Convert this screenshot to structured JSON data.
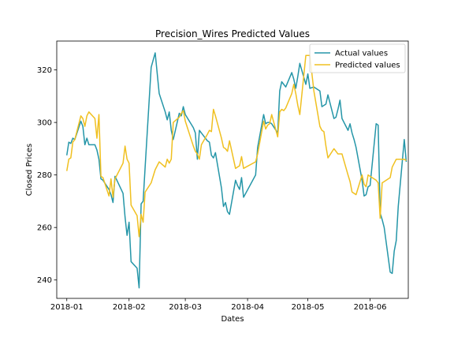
{
  "chart_data": {
    "type": "line",
    "title": "Precision_Wires Predicted Values",
    "xlabel": "Dates",
    "ylabel": "Closed Prices",
    "x_ticks": [
      "2018-01",
      "2018-02",
      "2018-03",
      "2018-04",
      "2018-05",
      "2018-06"
    ],
    "y_ticks": [
      240,
      260,
      280,
      300,
      320
    ],
    "ylim": [
      233,
      331
    ],
    "xlim": [
      "2017-12-27",
      "2018-06-20"
    ],
    "legend_position": "top-right",
    "grid": false,
    "series": [
      {
        "name": "Actual values",
        "color": "#2596a8",
        "points": [
          [
            "2018-01-01",
            287.5
          ],
          [
            "2018-01-02",
            292.5
          ],
          [
            "2018-01-03",
            292.0
          ],
          [
            "2018-01-04",
            294.0
          ],
          [
            "2018-01-05",
            293.5
          ],
          [
            "2018-01-08",
            300.5
          ],
          [
            "2018-01-09",
            298.5
          ],
          [
            "2018-01-10",
            291.5
          ],
          [
            "2018-01-11",
            294.0
          ],
          [
            "2018-01-12",
            291.5
          ],
          [
            "2018-01-15",
            291.5
          ],
          [
            "2018-01-16",
            289.5
          ],
          [
            "2018-01-17",
            286.0
          ],
          [
            "2018-01-18",
            278.5
          ],
          [
            "2018-01-19",
            278.0
          ],
          [
            "2018-01-22",
            274.5
          ],
          [
            "2018-01-23",
            272.5
          ],
          [
            "2018-01-24",
            269.5
          ],
          [
            "2018-01-25",
            279.5
          ],
          [
            "2018-01-29",
            273.0
          ],
          [
            "2018-01-30",
            264.0
          ],
          [
            "2018-01-31",
            257.0
          ],
          [
            "2018-02-01",
            262.0
          ],
          [
            "2018-02-02",
            247.0
          ],
          [
            "2018-02-05",
            244.5
          ],
          [
            "2018-02-06",
            237.0
          ],
          [
            "2018-02-07",
            269.0
          ],
          [
            "2018-02-08",
            270.0
          ],
          [
            "2018-02-09",
            283.0
          ],
          [
            "2018-02-12",
            321.0
          ],
          [
            "2018-02-14",
            326.5
          ],
          [
            "2018-02-16",
            311.0
          ],
          [
            "2018-02-19",
            304.0
          ],
          [
            "2018-02-20",
            301.0
          ],
          [
            "2018-02-21",
            304.0
          ],
          [
            "2018-02-22",
            297.0
          ],
          [
            "2018-02-23",
            293.5
          ],
          [
            "2018-02-26",
            303.5
          ],
          [
            "2018-02-27",
            302.5
          ],
          [
            "2018-02-28",
            306.0
          ],
          [
            "2018-03-01",
            303.0
          ],
          [
            "2018-03-05",
            298.0
          ],
          [
            "2018-03-06",
            296.0
          ],
          [
            "2018-03-07",
            286.0
          ],
          [
            "2018-03-08",
            297.0
          ],
          [
            "2018-03-09",
            296.0
          ],
          [
            "2018-03-12",
            293.0
          ],
          [
            "2018-03-13",
            292.5
          ],
          [
            "2018-03-14",
            287.5
          ],
          [
            "2018-03-15",
            286.5
          ],
          [
            "2018-03-16",
            288.5
          ],
          [
            "2018-03-19",
            275.0
          ],
          [
            "2018-03-20",
            268.0
          ],
          [
            "2018-03-21",
            269.5
          ],
          [
            "2018-03-22",
            266.0
          ],
          [
            "2018-03-23",
            265.0
          ],
          [
            "2018-03-26",
            278.0
          ],
          [
            "2018-03-27",
            276.0
          ],
          [
            "2018-03-28",
            274.5
          ],
          [
            "2018-03-29",
            279.0
          ],
          [
            "2018-03-30",
            271.5
          ],
          [
            "2018-04-05",
            280.0
          ],
          [
            "2018-04-06",
            290.5
          ],
          [
            "2018-04-09",
            303.0
          ],
          [
            "2018-04-10",
            299.5
          ],
          [
            "2018-04-11",
            300.0
          ],
          [
            "2018-04-12",
            300.0
          ],
          [
            "2018-04-13",
            299.5
          ],
          [
            "2018-04-16",
            296.0
          ],
          [
            "2018-04-17",
            312.0
          ],
          [
            "2018-04-18",
            315.5
          ],
          [
            "2018-04-19",
            314.5
          ],
          [
            "2018-04-20",
            313.5
          ],
          [
            "2018-04-23",
            319.0
          ],
          [
            "2018-04-24",
            316.5
          ],
          [
            "2018-04-25",
            313.0
          ],
          [
            "2018-04-26",
            317.5
          ],
          [
            "2018-04-27",
            322.5
          ],
          [
            "2018-04-30",
            314.5
          ],
          [
            "2018-05-01",
            318.5
          ],
          [
            "2018-05-02",
            313.0
          ],
          [
            "2018-05-04",
            313.5
          ],
          [
            "2018-05-07",
            312.0
          ],
          [
            "2018-05-08",
            306.0
          ],
          [
            "2018-05-09",
            306.5
          ],
          [
            "2018-05-10",
            307.0
          ],
          [
            "2018-05-11",
            310.5
          ],
          [
            "2018-05-14",
            301.5
          ],
          [
            "2018-05-15",
            302.0
          ],
          [
            "2018-05-16",
            305.0
          ],
          [
            "2018-05-17",
            308.5
          ],
          [
            "2018-05-18",
            301.5
          ],
          [
            "2018-05-21",
            297.0
          ],
          [
            "2018-05-22",
            299.5
          ],
          [
            "2018-05-23",
            296.0
          ],
          [
            "2018-05-24",
            293.5
          ],
          [
            "2018-05-25",
            290.5
          ],
          [
            "2018-05-28",
            278.0
          ],
          [
            "2018-05-29",
            272.0
          ],
          [
            "2018-05-30",
            272.5
          ],
          [
            "2018-05-31",
            275.5
          ],
          [
            "2018-06-01",
            276.0
          ],
          [
            "2018-06-04",
            299.5
          ],
          [
            "2018-06-05",
            299.0
          ],
          [
            "2018-06-06",
            265.5
          ],
          [
            "2018-06-07",
            263.0
          ],
          [
            "2018-06-08",
            260.0
          ],
          [
            "2018-06-11",
            243.0
          ],
          [
            "2018-06-12",
            242.5
          ],
          [
            "2018-06-13",
            251.0
          ],
          [
            "2018-06-14",
            255.0
          ],
          [
            "2018-06-15",
            268.0
          ],
          [
            "2018-06-18",
            293.5
          ],
          [
            "2018-06-19",
            285.0
          ]
        ]
      },
      {
        "name": "Predicted values",
        "color": "#f0c020",
        "points": [
          [
            "2018-01-01",
            281.5
          ],
          [
            "2018-01-02",
            286.0
          ],
          [
            "2018-01-03",
            286.5
          ],
          [
            "2018-01-04",
            292.5
          ],
          [
            "2018-01-05",
            293.5
          ],
          [
            "2018-01-08",
            302.5
          ],
          [
            "2018-01-09",
            301.5
          ],
          [
            "2018-01-10",
            298.5
          ],
          [
            "2018-01-11",
            302.5
          ],
          [
            "2018-01-12",
            304.0
          ],
          [
            "2018-01-15",
            301.5
          ],
          [
            "2018-01-16",
            294.0
          ],
          [
            "2018-01-17",
            303.0
          ],
          [
            "2018-01-18",
            279.5
          ],
          [
            "2018-01-19",
            279.0
          ],
          [
            "2018-01-22",
            272.0
          ],
          [
            "2018-01-23",
            278.5
          ],
          [
            "2018-01-24",
            271.5
          ],
          [
            "2018-01-25",
            278.5
          ],
          [
            "2018-01-29",
            284.5
          ],
          [
            "2018-01-30",
            291.0
          ],
          [
            "2018-01-31",
            286.0
          ],
          [
            "2018-02-01",
            284.5
          ],
          [
            "2018-02-02",
            268.5
          ],
          [
            "2018-02-05",
            264.5
          ],
          [
            "2018-02-06",
            256.5
          ],
          [
            "2018-02-07",
            265.0
          ],
          [
            "2018-02-08",
            262.0
          ],
          [
            "2018-02-09",
            273.5
          ],
          [
            "2018-02-12",
            277.0
          ],
          [
            "2018-02-14",
            282.0
          ],
          [
            "2018-02-16",
            285.0
          ],
          [
            "2018-02-19",
            283.0
          ],
          [
            "2018-02-20",
            286.0
          ],
          [
            "2018-02-21",
            284.5
          ],
          [
            "2018-02-22",
            286.0
          ],
          [
            "2018-02-23",
            300.0
          ],
          [
            "2018-02-26",
            302.0
          ],
          [
            "2018-02-27",
            303.5
          ],
          [
            "2018-02-28",
            304.5
          ],
          [
            "2018-03-01",
            300.5
          ],
          [
            "2018-03-05",
            291.0
          ],
          [
            "2018-03-06",
            289.0
          ],
          [
            "2018-03-07",
            288.0
          ],
          [
            "2018-03-08",
            286.0
          ],
          [
            "2018-03-09",
            291.5
          ],
          [
            "2018-03-12",
            295.5
          ],
          [
            "2018-03-13",
            297.0
          ],
          [
            "2018-03-14",
            296.5
          ],
          [
            "2018-03-15",
            305.0
          ],
          [
            "2018-03-16",
            302.5
          ],
          [
            "2018-03-19",
            294.0
          ],
          [
            "2018-03-20",
            290.5
          ],
          [
            "2018-03-21",
            290.0
          ],
          [
            "2018-03-22",
            289.0
          ],
          [
            "2018-03-23",
            293.0
          ],
          [
            "2018-03-26",
            282.5
          ],
          [
            "2018-03-27",
            283.0
          ],
          [
            "2018-03-28",
            283.5
          ],
          [
            "2018-03-29",
            287.0
          ],
          [
            "2018-03-30",
            282.5
          ],
          [
            "2018-04-05",
            285.0
          ],
          [
            "2018-04-06",
            288.0
          ],
          [
            "2018-04-09",
            300.5
          ],
          [
            "2018-04-10",
            297.5
          ],
          [
            "2018-04-11",
            299.0
          ],
          [
            "2018-04-12",
            299.5
          ],
          [
            "2018-04-13",
            303.0
          ],
          [
            "2018-04-16",
            294.5
          ],
          [
            "2018-04-17",
            304.0
          ],
          [
            "2018-04-18",
            305.0
          ],
          [
            "2018-04-19",
            304.5
          ],
          [
            "2018-04-20",
            305.5
          ],
          [
            "2018-04-23",
            311.0
          ],
          [
            "2018-04-24",
            314.5
          ],
          [
            "2018-04-25",
            311.0
          ],
          [
            "2018-04-26",
            306.5
          ],
          [
            "2018-04-27",
            303.0
          ],
          [
            "2018-04-30",
            325.5
          ],
          [
            "2018-05-01",
            325.5
          ],
          [
            "2018-05-02",
            325.5
          ],
          [
            "2018-05-04",
            312.0
          ],
          [
            "2018-05-07",
            298.5
          ],
          [
            "2018-05-08",
            297.0
          ],
          [
            "2018-05-09",
            296.5
          ],
          [
            "2018-05-10",
            291.0
          ],
          [
            "2018-05-11",
            286.5
          ],
          [
            "2018-05-14",
            290.0
          ],
          [
            "2018-05-15",
            289.0
          ],
          [
            "2018-05-16",
            288.0
          ],
          [
            "2018-05-17",
            288.0
          ],
          [
            "2018-05-18",
            288.0
          ],
          [
            "2018-05-21",
            280.0
          ],
          [
            "2018-05-22",
            277.5
          ],
          [
            "2018-05-23",
            273.5
          ],
          [
            "2018-05-24",
            273.0
          ],
          [
            "2018-05-25",
            272.5
          ],
          [
            "2018-05-28",
            280.0
          ],
          [
            "2018-05-29",
            276.5
          ],
          [
            "2018-05-30",
            275.5
          ],
          [
            "2018-05-31",
            280.0
          ],
          [
            "2018-06-01",
            279.5
          ],
          [
            "2018-06-04",
            278.0
          ],
          [
            "2018-06-05",
            277.0
          ],
          [
            "2018-06-06",
            263.5
          ],
          [
            "2018-06-07",
            277.0
          ],
          [
            "2018-06-08",
            277.5
          ],
          [
            "2018-06-11",
            279.0
          ],
          [
            "2018-06-12",
            283.0
          ],
          [
            "2018-06-13",
            284.5
          ],
          [
            "2018-06-14",
            286.0
          ],
          [
            "2018-06-15",
            286.0
          ],
          [
            "2018-06-18",
            286.0
          ],
          [
            "2018-06-19",
            285.5
          ]
        ]
      }
    ]
  }
}
